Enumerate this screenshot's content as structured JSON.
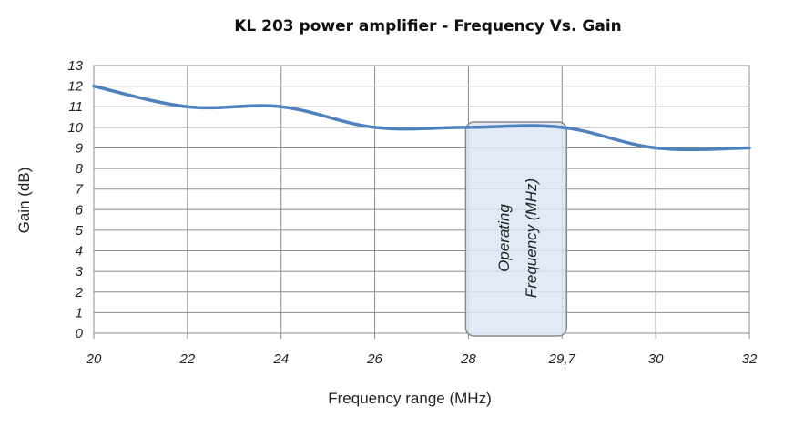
{
  "chart_data": {
    "type": "line",
    "title": "KL 203 power amplifier - Frequency Vs. Gain",
    "xlabel": "Frequency range (MHz)",
    "ylabel": "Gain (dB)",
    "categories": [
      "20",
      "22",
      "24",
      "26",
      "28",
      "29,7",
      "30",
      "32"
    ],
    "series": [
      {
        "name": "Gain",
        "values": [
          12,
          11,
          11,
          10,
          10,
          10,
          9,
          9
        ],
        "color": "#4f81bd"
      }
    ],
    "ylim": [
      0,
      13
    ],
    "yticks": [
      "0",
      "1",
      "2",
      "3",
      "4",
      "5",
      "6",
      "7",
      "8",
      "9",
      "10",
      "11",
      "12",
      "13"
    ],
    "grid": true,
    "smooth": true,
    "annotation": {
      "lines": [
        "Operating",
        "Frequency (MHz)"
      ],
      "x_range": [
        "28",
        "29,7"
      ],
      "fill": "#dce6f4",
      "stroke": "#888888"
    }
  }
}
